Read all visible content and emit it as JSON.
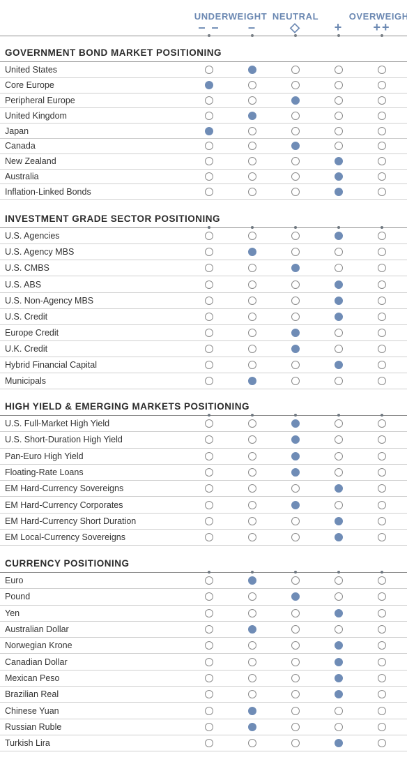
{
  "header": {
    "labels": [
      {
        "text": "UNDERWEIGHT",
        "col": 0.5
      },
      {
        "text": "NEUTRAL",
        "col": 2
      },
      {
        "text": "OVERWEIGHT",
        "col": 4
      }
    ],
    "symbols": [
      "– –",
      "–",
      "◇",
      "+",
      "++"
    ]
  },
  "colors": {
    "accent": "#6b88b2",
    "filled": "#6f8cb6",
    "empty_border": "#8a8a8a"
  },
  "chart_data": {
    "type": "table",
    "scale": [
      "– –",
      "–",
      "◇",
      "+",
      "++"
    ],
    "sections": [
      {
        "title": "GOVERNMENT BOND MARKET POSITIONING",
        "rows": [
          {
            "label": "United States",
            "position": 1
          },
          {
            "label": "Core Europe",
            "position": 0
          },
          {
            "label": "Peripheral Europe",
            "position": 2
          },
          {
            "label": "United Kingdom",
            "position": 1
          },
          {
            "label": "Japan",
            "position": 0
          },
          {
            "label": "Canada",
            "position": 2
          },
          {
            "label": "New Zealand",
            "position": 3
          },
          {
            "label": "Australia",
            "position": 3
          },
          {
            "label": "Inflation-Linked Bonds",
            "position": 3
          }
        ]
      },
      {
        "title": "INVESTMENT GRADE SECTOR POSITIONING",
        "rows": [
          {
            "label": "U.S. Agencies",
            "position": 3
          },
          {
            "label": "U.S. Agency MBS",
            "position": 1
          },
          {
            "label": "U.S. CMBS",
            "position": 2
          },
          {
            "label": "U.S. ABS",
            "position": 3
          },
          {
            "label": "U.S. Non-Agency MBS",
            "position": 3
          },
          {
            "label": "U.S. Credit",
            "position": 3
          },
          {
            "label": "Europe Credit",
            "position": 2
          },
          {
            "label": "U.K. Credit",
            "position": 2
          },
          {
            "label": "Hybrid Financial Capital",
            "position": 3
          },
          {
            "label": "Municipals",
            "position": 1
          }
        ]
      },
      {
        "title": "HIGH YIELD & EMERGING MARKETS POSITIONING",
        "rows": [
          {
            "label": "U.S. Full-Market High Yield",
            "position": 2
          },
          {
            "label": "U.S. Short-Duration High Yield",
            "position": 2
          },
          {
            "label": "Pan-Euro High Yield",
            "position": 2
          },
          {
            "label": "Floating-Rate Loans",
            "position": 2
          },
          {
            "label": "EM Hard-Currency Sovereigns",
            "position": 3
          },
          {
            "label": "EM Hard-Currency Corporates",
            "position": 2
          },
          {
            "label": "EM Hard-Currency Short Duration",
            "position": 3
          },
          {
            "label": "EM Local-Currency Sovereigns",
            "position": 3
          }
        ]
      },
      {
        "title": "CURRENCY POSITIONING",
        "rows": [
          {
            "label": "Euro",
            "position": 1
          },
          {
            "label": "Pound",
            "position": 2
          },
          {
            "label": "Yen",
            "position": 3
          },
          {
            "label": "Australian Dollar",
            "position": 1
          },
          {
            "label": "Norwegian Krone",
            "position": 3
          },
          {
            "label": "Canadian Dollar",
            "position": 3
          },
          {
            "label": "Mexican Peso",
            "position": 3
          },
          {
            "label": "Brazilian Real",
            "position": 3
          },
          {
            "label": "Chinese Yuan",
            "position": 1
          },
          {
            "label": "Russian Ruble",
            "position": 1
          },
          {
            "label": "Turkish Lira",
            "position": 3
          }
        ]
      }
    ]
  }
}
